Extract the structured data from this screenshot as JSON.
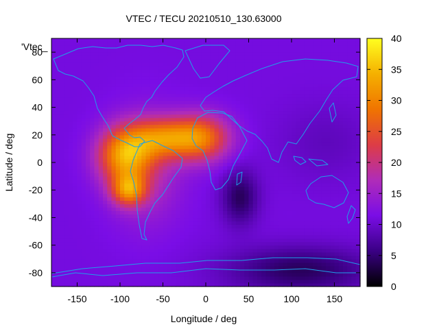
{
  "chart_data": {
    "type": "heatmap",
    "title": "VTEC / TECU 20210510_130.63000",
    "xlabel": "Longitude / deg",
    "ylabel": "Latitude / deg",
    "series_label": "'Vtec_",
    "xlim": [
      -180,
      180
    ],
    "ylim": [
      -90,
      90
    ],
    "xticks": [
      -150,
      -100,
      -50,
      0,
      50,
      100,
      150
    ],
    "yticks": [
      -80,
      -60,
      -40,
      -20,
      0,
      20,
      40,
      60,
      80
    ],
    "colorbar": {
      "range": [
        0,
        40
      ],
      "ticks": [
        0,
        5,
        10,
        15,
        20,
        25,
        30,
        35,
        40
      ],
      "palette": [
        "#000000",
        "#3a0084",
        "#7a0de6",
        "#b02cb8",
        "#dd3c46",
        "#f07400",
        "#f5b000",
        "#ffff20"
      ]
    },
    "base_level": 11,
    "features": [
      {
        "lon": -95,
        "lat": 5,
        "sigma_lon": 22,
        "sigma_lat": 14,
        "amp": 19
      },
      {
        "lon": -90,
        "lat": -20,
        "sigma_lon": 14,
        "sigma_lat": 8,
        "amp": 16
      },
      {
        "lon": -50,
        "lat": 18,
        "sigma_lon": 28,
        "sigma_lat": 10,
        "amp": 15
      },
      {
        "lon": -5,
        "lat": 18,
        "sigma_lon": 24,
        "sigma_lat": 12,
        "amp": 16
      },
      {
        "lon": -70,
        "lat": -5,
        "sigma_lon": 30,
        "sigma_lat": 28,
        "amp": 6
      },
      {
        "lon": 40,
        "lat": -25,
        "sigma_lon": 15,
        "sigma_lat": 14,
        "amp": -7
      },
      {
        "lon": 110,
        "lat": -78,
        "sigma_lon": 60,
        "sigma_lat": 12,
        "amp": -7
      },
      {
        "lon": 140,
        "lat": 15,
        "sigma_lon": 40,
        "sigma_lat": 20,
        "amp": -2
      }
    ]
  }
}
